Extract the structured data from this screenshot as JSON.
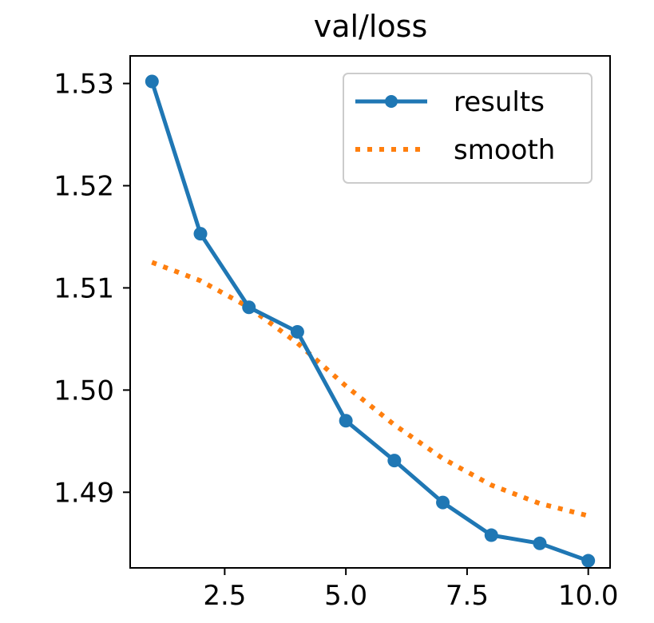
{
  "chart_data": {
    "type": "line",
    "title": "val/loss",
    "xlabel": "",
    "ylabel": "",
    "xlim": [
      0.55,
      10.45
    ],
    "ylim": [
      1.4826,
      1.5327
    ],
    "x_ticks": [
      2.5,
      5.0,
      7.5,
      10.0
    ],
    "x_tick_labels": [
      "2.5",
      "5.0",
      "7.5",
      "10.0"
    ],
    "y_ticks": [
      1.49,
      1.5,
      1.51,
      1.52,
      1.53
    ],
    "y_tick_labels": [
      "1.49",
      "1.50",
      "1.51",
      "1.52",
      "1.53"
    ],
    "grid": false,
    "legend_position": "top-right",
    "x": [
      1,
      2,
      3,
      4,
      5,
      6,
      7,
      8,
      9,
      10
    ],
    "series": [
      {
        "name": "results",
        "color": "#1f77b4",
        "style": "solid",
        "marker": "circle",
        "values": [
          1.5302,
          1.5153,
          1.5081,
          1.5057,
          1.497,
          1.4931,
          1.489,
          1.4858,
          1.485,
          1.4833
        ]
      },
      {
        "name": "smooth",
        "color": "#ff7f0e",
        "style": "dotted",
        "marker": "none",
        "values": [
          1.5125,
          1.5107,
          1.5081,
          1.5046,
          1.5004,
          1.4966,
          1.4933,
          1.4907,
          1.4889,
          1.4877
        ]
      }
    ]
  }
}
